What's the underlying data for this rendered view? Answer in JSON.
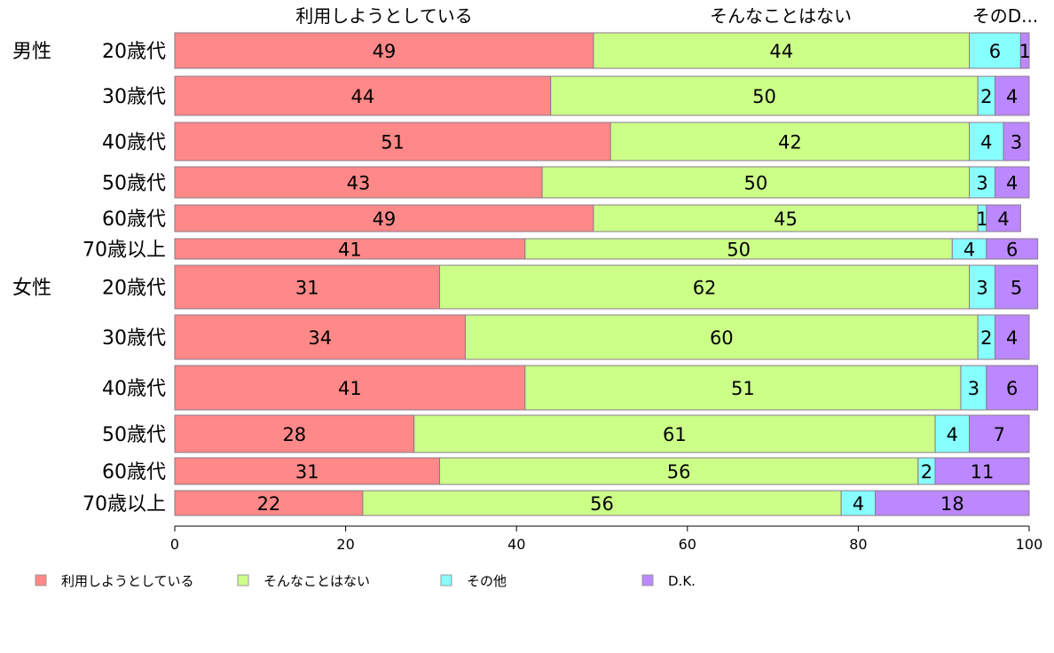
{
  "chart_data": {
    "type": "bar",
    "orientation": "horizontal-stacked-100",
    "column_headers": [
      "利用しようとしている",
      "そんなことはない",
      "そのD..."
    ],
    "groups": [
      "男性",
      "女性"
    ],
    "categories": [
      {
        "group": "男性",
        "label": "20歳代"
      },
      {
        "group": "",
        "label": "30歳代"
      },
      {
        "group": "",
        "label": "40歳代"
      },
      {
        "group": "",
        "label": "50歳代"
      },
      {
        "group": "",
        "label": "60歳代"
      },
      {
        "group": "",
        "label": "70歳以上"
      },
      {
        "group": "女性",
        "label": "20歳代"
      },
      {
        "group": "",
        "label": "30歳代"
      },
      {
        "group": "",
        "label": "40歳代"
      },
      {
        "group": "",
        "label": "50歳代"
      },
      {
        "group": "",
        "label": "60歳代"
      },
      {
        "group": "",
        "label": "70歳以上"
      }
    ],
    "series": [
      {
        "name": "利用しようとしている",
        "color": "#ff8888",
        "values": [
          49,
          44,
          51,
          43,
          49,
          41,
          31,
          34,
          41,
          28,
          31,
          22
        ]
      },
      {
        "name": "そんなことはない",
        "color": "#ccff88",
        "values": [
          44,
          50,
          42,
          50,
          45,
          50,
          62,
          60,
          51,
          61,
          56,
          56
        ]
      },
      {
        "name": "その他",
        "color": "#88ffff",
        "values": [
          6,
          2,
          4,
          3,
          1,
          4,
          3,
          2,
          3,
          4,
          2,
          4
        ]
      },
      {
        "name": "D.K.",
        "color": "#bb88ff",
        "values": [
          1,
          4,
          3,
          4,
          4,
          6,
          5,
          4,
          6,
          7,
          11,
          18
        ]
      }
    ],
    "xlim": [
      0,
      100
    ],
    "xticks": [
      "0",
      "20",
      "40",
      "60",
      "80",
      "100"
    ],
    "legend_position": "bottom",
    "grid": false
  }
}
